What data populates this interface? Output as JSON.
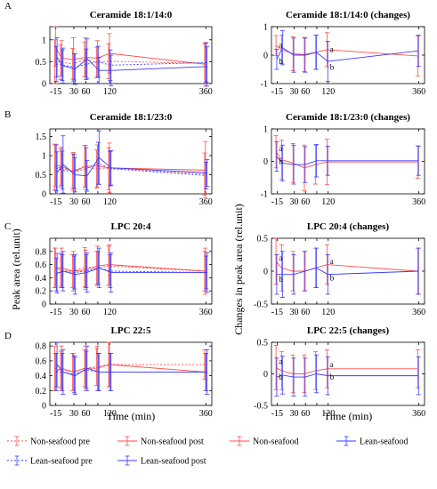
{
  "colors": {
    "red": "#ff4d4d",
    "blue": "#3b3bff",
    "axis": "#000000"
  },
  "x_ticks": [
    -15,
    30,
    60,
    90,
    120,
    360
  ],
  "x_tick_labels": [
    "-15",
    "30",
    "60",
    "",
    "120",
    "360"
  ],
  "xlabel": "Time (min)",
  "ylabel_left": "Peak area (rel.unit)",
  "ylabel_right": "Changes in peak area (rel.unit)",
  "legend": [
    {
      "name": "Non-seafood pre",
      "color": "#ff4d4d",
      "style": "dotted",
      "marker": "errorbar"
    },
    {
      "name": "Non-seafood post",
      "color": "#ff4d4d",
      "style": "solid",
      "marker": "errorbar"
    },
    {
      "name": "Non-seafood",
      "color": "#ff4d4d",
      "style": "solid",
      "marker": "errorbar"
    },
    {
      "name": "Lean-seafood",
      "color": "#3b3bff",
      "style": "solid",
      "marker": "errorbar"
    },
    {
      "name": "Lean-seafood pre",
      "color": "#3b3bff",
      "style": "dotted",
      "marker": "errorbar"
    },
    {
      "name": "Lean-seafood post",
      "color": "#3b3bff",
      "style": "solid",
      "marker": "errorbar"
    }
  ],
  "chart_data": [
    {
      "type": "line",
      "panel": "A",
      "title": "Ceramide 18:1/14:0",
      "ylim": [
        0,
        1.3
      ],
      "yticks": [
        0,
        0.5,
        1
      ],
      "ytick_labels": [
        "0",
        "0.5",
        "1"
      ],
      "x": [
        -15,
        0,
        30,
        60,
        90,
        120,
        360
      ],
      "series": [
        {
          "name": "Non-seafood pre",
          "color": "#ff4d4d",
          "style": "dotted",
          "values": [
            0.5,
            0.49,
            0.45,
            0.55,
            0.48,
            0.51,
            0.46
          ],
          "err": [
            0.5,
            0.4,
            0.35,
            0.4,
            0.35,
            0.4,
            0.45
          ]
        },
        {
          "name": "Non-seafood post",
          "color": "#ff4d4d",
          "style": "solid",
          "values": [
            0.85,
            0.58,
            0.55,
            0.6,
            0.58,
            0.69,
            0.44
          ],
          "err": [
            0.45,
            0.4,
            0.5,
            0.45,
            0.4,
            0.45,
            0.5
          ]
        },
        {
          "name": "Lean-seafood pre",
          "color": "#3b3bff",
          "style": "dotted",
          "values": [
            0.45,
            0.42,
            0.38,
            0.44,
            0.5,
            0.42,
            0.48
          ],
          "err": [
            0.4,
            0.35,
            0.3,
            0.35,
            0.35,
            0.35,
            0.45
          ]
        },
        {
          "name": "Lean-seafood post",
          "color": "#3b3bff",
          "style": "solid",
          "values": [
            0.6,
            0.41,
            0.33,
            0.57,
            0.3,
            0.3,
            0.39
          ],
          "err": [
            0.45,
            0.4,
            0.35,
            0.45,
            0.3,
            0.35,
            0.45
          ]
        }
      ]
    },
    {
      "type": "line",
      "panel": "",
      "title": "Ceramide 18:1/14:0 (changes)",
      "ylim": [
        -1,
        1
      ],
      "yticks": [
        -1,
        0,
        1
      ],
      "ytick_labels": [
        "-1",
        "0",
        "1"
      ],
      "x": [
        -15,
        0,
        30,
        60,
        90,
        120,
        360
      ],
      "series": [
        {
          "name": "Non-seafood",
          "color": "#ff4d4d",
          "style": "solid",
          "values": [
            0.34,
            0.2,
            0.05,
            0.02,
            0.1,
            0.19,
            -0.03
          ],
          "err": [
            0.35,
            0.5,
            0.6,
            0.6,
            0.6,
            0.6,
            0.7
          ]
        },
        {
          "name": "Lean-seafood",
          "color": "#3b3bff",
          "style": "solid",
          "values": [
            -0.15,
            0.26,
            0.0,
            0.0,
            0.1,
            -0.22,
            0.15
          ],
          "err": [
            0.35,
            0.6,
            0.6,
            0.6,
            0.6,
            0.7,
            0.55
          ]
        }
      ],
      "annotations": [
        {
          "text": "a",
          "x": -15,
          "y": 0.36
        },
        {
          "text": "b",
          "x": -15,
          "y": -0.22
        },
        {
          "text": "a",
          "x": 120,
          "y": 0.2
        },
        {
          "text": "b",
          "x": 120,
          "y": -0.42
        }
      ]
    },
    {
      "type": "line",
      "panel": "B",
      "title": "Ceramide 18:1/23:0",
      "ylim": [
        0,
        1.7
      ],
      "yticks": [
        0,
        0.5,
        1,
        1.5
      ],
      "ytick_labels": [
        "0",
        "0.5",
        "1",
        "1.5"
      ],
      "x": [
        -15,
        0,
        30,
        60,
        90,
        120,
        360
      ],
      "series": [
        {
          "name": "Non-seafood pre",
          "color": "#ff4d4d",
          "style": "dotted",
          "values": [
            0.7,
            0.68,
            0.6,
            0.72,
            0.65,
            0.66,
            0.52
          ],
          "err": [
            0.6,
            0.5,
            0.45,
            0.55,
            0.5,
            0.55,
            0.55
          ]
        },
        {
          "name": "Non-seafood post",
          "color": "#ff4d4d",
          "style": "solid",
          "values": [
            0.75,
            0.72,
            0.58,
            0.72,
            0.73,
            0.68,
            0.62
          ],
          "err": [
            0.55,
            0.5,
            0.5,
            0.55,
            0.55,
            0.65,
            0.75
          ]
        },
        {
          "name": "Lean-seafood pre",
          "color": "#3b3bff",
          "style": "dotted",
          "values": [
            0.68,
            0.62,
            0.58,
            0.66,
            0.8,
            0.66,
            0.48
          ],
          "err": [
            0.6,
            0.5,
            0.45,
            0.55,
            0.55,
            0.45,
            0.35
          ]
        },
        {
          "name": "Lean-seafood post",
          "color": "#3b3bff",
          "style": "solid",
          "values": [
            0.55,
            0.77,
            0.5,
            0.47,
            0.95,
            0.68,
            0.55
          ],
          "err": [
            0.55,
            0.75,
            0.45,
            0.4,
            0.7,
            0.45,
            0.35
          ]
        }
      ]
    },
    {
      "type": "line",
      "panel": "",
      "title": "Ceramide 18:1/23:0 (changes)",
      "ylim": [
        -1,
        1
      ],
      "yticks": [
        -1,
        0,
        1
      ],
      "ytick_labels": [
        "-1",
        "0",
        "1"
      ],
      "x": [
        -15,
        0,
        30,
        60,
        90,
        120,
        360
      ],
      "series": [
        {
          "name": "Non-seafood",
          "color": "#ff4d4d",
          "style": "solid",
          "values": [
            0.3,
            0.05,
            -0.05,
            -0.2,
            -0.1,
            -0.02,
            -0.02
          ],
          "err": [
            0.5,
            0.6,
            0.6,
            0.7,
            0.6,
            0.7,
            0.5
          ]
        },
        {
          "name": "Lean-seafood",
          "color": "#3b3bff",
          "style": "solid",
          "values": [
            0.15,
            -0.05,
            -0.1,
            -0.1,
            0.02,
            0.02,
            0.02
          ],
          "err": [
            0.45,
            0.55,
            0.6,
            0.55,
            0.5,
            0.45,
            0.45
          ]
        }
      ],
      "annotations": [
        {
          "text": "a",
          "x": -15,
          "y": 0.4
        },
        {
          "text": "b",
          "x": -15,
          "y": 0.0
        }
      ]
    },
    {
      "type": "line",
      "panel": "C",
      "title": "LPC 20:4",
      "ylim": [
        0,
        1.0
      ],
      "yticks": [
        0,
        0.2,
        0.4,
        0.6,
        0.8
      ],
      "ytick_labels": [
        "0",
        "0.2",
        "0.4",
        "0.6",
        "0.8"
      ],
      "x": [
        -15,
        0,
        30,
        60,
        90,
        120,
        360
      ],
      "series": [
        {
          "name": "Non-seafood pre",
          "color": "#ff4d4d",
          "style": "dotted",
          "values": [
            0.55,
            0.52,
            0.5,
            0.56,
            0.55,
            0.58,
            0.5
          ],
          "err": [
            0.3,
            0.25,
            0.25,
            0.3,
            0.25,
            0.3,
            0.3
          ]
        },
        {
          "name": "Non-seafood post",
          "color": "#ff4d4d",
          "style": "solid",
          "values": [
            0.55,
            0.55,
            0.5,
            0.52,
            0.58,
            0.6,
            0.5
          ],
          "err": [
            0.3,
            0.3,
            0.3,
            0.3,
            0.3,
            0.3,
            0.35
          ]
        },
        {
          "name": "Lean-seafood pre",
          "color": "#3b3bff",
          "style": "dotted",
          "values": [
            0.45,
            0.5,
            0.48,
            0.5,
            0.55,
            0.5,
            0.48
          ],
          "err": [
            0.25,
            0.25,
            0.25,
            0.25,
            0.25,
            0.25,
            0.25
          ]
        },
        {
          "name": "Lean-seafood post",
          "color": "#3b3bff",
          "style": "solid",
          "values": [
            0.47,
            0.5,
            0.45,
            0.48,
            0.55,
            0.48,
            0.48
          ],
          "err": [
            0.3,
            0.3,
            0.3,
            0.3,
            0.3,
            0.3,
            0.3
          ]
        }
      ]
    },
    {
      "type": "line",
      "panel": "",
      "title": "LPC 20:4 (changes)",
      "ylim": [
        -0.5,
        0.5
      ],
      "yticks": [
        -0.5,
        0,
        0.5
      ],
      "ytick_labels": [
        "-0.5",
        "0",
        "0.5"
      ],
      "x": [
        -15,
        0,
        30,
        60,
        90,
        120,
        360
      ],
      "series": [
        {
          "name": "Non-seafood",
          "color": "#ff4d4d",
          "style": "solid",
          "values": [
            0.15,
            0.05,
            0.0,
            0.0,
            0.05,
            0.1,
            0.0
          ],
          "err": [
            0.35,
            0.35,
            0.3,
            0.3,
            0.3,
            0.3,
            0.35
          ]
        },
        {
          "name": "Lean-seafood",
          "color": "#3b3bff",
          "style": "solid",
          "values": [
            -0.05,
            -0.05,
            -0.05,
            0.0,
            0.05,
            -0.05,
            0.0
          ],
          "err": [
            0.3,
            0.35,
            0.3,
            0.3,
            0.3,
            0.3,
            0.35
          ]
        }
      ],
      "annotations": [
        {
          "text": "a",
          "x": -15,
          "y": 0.2
        },
        {
          "text": "b",
          "x": -15,
          "y": -0.12
        },
        {
          "text": "a",
          "x": 120,
          "y": 0.15
        },
        {
          "text": "b",
          "x": 120,
          "y": -0.1
        }
      ]
    },
    {
      "type": "line",
      "panel": "D",
      "title": "LPC 22:5",
      "ylim": [
        0,
        0.85
      ],
      "yticks": [
        0,
        0.2,
        0.4,
        0.6,
        0.8
      ],
      "ytick_labels": [
        "0",
        "0.2",
        "0.4",
        "0.6",
        "0.8"
      ],
      "x": [
        -15,
        0,
        30,
        60,
        90,
        120,
        360
      ],
      "series": [
        {
          "name": "Non-seafood pre",
          "color": "#ff4d4d",
          "style": "dotted",
          "values": [
            0.5,
            0.48,
            0.45,
            0.5,
            0.52,
            0.55,
            0.55
          ],
          "err": [
            0.3,
            0.25,
            0.25,
            0.25,
            0.25,
            0.3,
            0.2
          ]
        },
        {
          "name": "Non-seafood post",
          "color": "#ff4d4d",
          "style": "solid",
          "values": [
            0.45,
            0.5,
            0.45,
            0.5,
            0.5,
            0.55,
            0.45
          ],
          "err": [
            0.25,
            0.3,
            0.25,
            0.3,
            0.3,
            0.3,
            0.25
          ]
        },
        {
          "name": "Lean-seafood pre",
          "color": "#3b3bff",
          "style": "dotted",
          "values": [
            0.45,
            0.45,
            0.42,
            0.48,
            0.45,
            0.45,
            0.45
          ],
          "err": [
            0.25,
            0.25,
            0.25,
            0.25,
            0.25,
            0.25,
            0.25
          ]
        },
        {
          "name": "Lean-seafood post",
          "color": "#3b3bff",
          "style": "solid",
          "values": [
            0.55,
            0.45,
            0.4,
            0.5,
            0.45,
            0.45,
            0.45
          ],
          "err": [
            0.3,
            0.3,
            0.25,
            0.3,
            0.25,
            0.25,
            0.3
          ]
        }
      ]
    },
    {
      "type": "line",
      "panel": "",
      "title": "LPC 22:5 (changes)",
      "ylim": [
        -0.5,
        0.5
      ],
      "yticks": [
        -0.5,
        0,
        0.5
      ],
      "ytick_labels": [
        "-0.5",
        "0",
        "0.5"
      ],
      "x": [
        -15,
        0,
        30,
        60,
        90,
        120,
        360
      ],
      "series": [
        {
          "name": "Non-seafood",
          "color": "#ff4d4d",
          "style": "solid",
          "values": [
            0.1,
            0.05,
            0.0,
            0.0,
            0.05,
            0.08,
            0.08
          ],
          "err": [
            0.35,
            0.3,
            0.3,
            0.3,
            0.3,
            0.3,
            0.3
          ]
        },
        {
          "name": "Lean-seafood",
          "color": "#3b3bff",
          "style": "solid",
          "values": [
            -0.05,
            -0.02,
            -0.05,
            -0.05,
            0.0,
            -0.03,
            -0.03
          ],
          "err": [
            0.3,
            0.3,
            0.3,
            0.3,
            0.3,
            0.3,
            0.3
          ]
        }
      ],
      "annotations": [
        {
          "text": "a",
          "x": -15,
          "y": 0.2
        },
        {
          "text": "b",
          "x": -15,
          "y": -0.05
        },
        {
          "text": "a",
          "x": 120,
          "y": 0.15
        },
        {
          "text": "b",
          "x": 120,
          "y": -0.05
        }
      ]
    }
  ]
}
